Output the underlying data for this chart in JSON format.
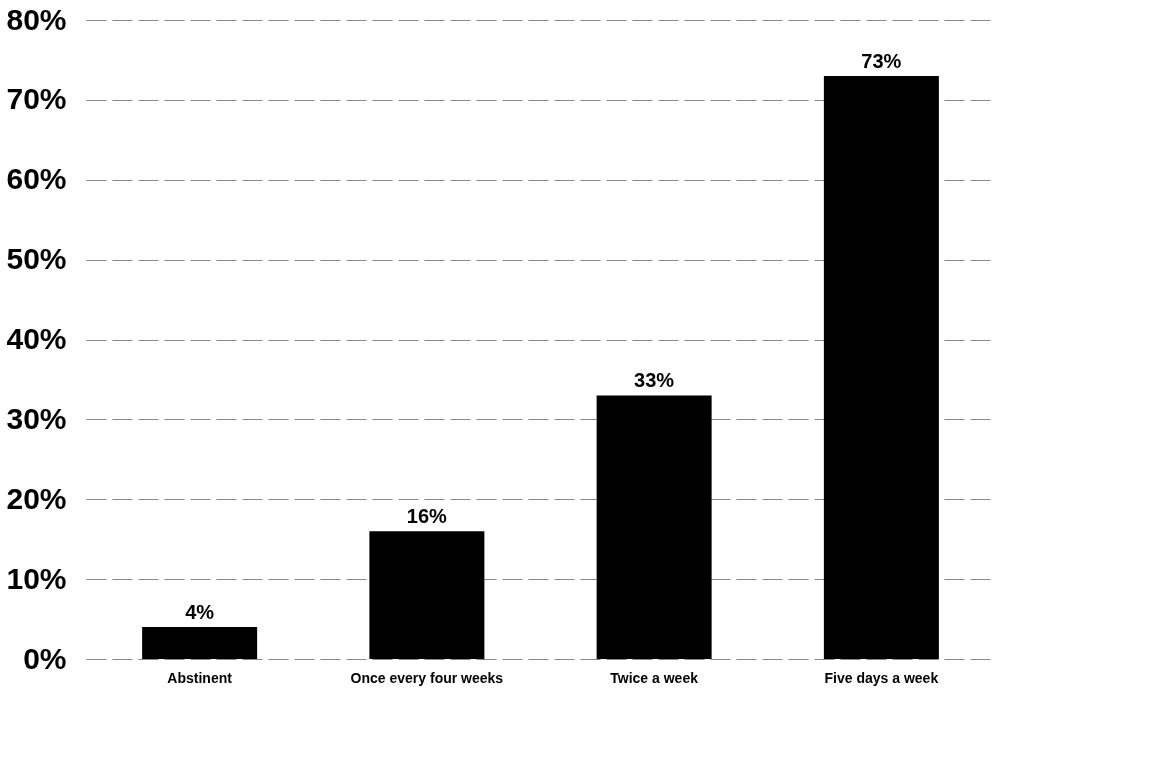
{
  "chart_data": {
    "type": "bar",
    "categories": [
      "Abstinent",
      "Once every four weeks",
      "Twice a week",
      "Five days a week"
    ],
    "values": [
      4,
      16,
      33,
      73
    ],
    "color": "#000000",
    "value_labels": [
      "4%",
      "16%",
      "33%",
      "73%"
    ],
    "ylim": [
      0,
      80
    ],
    "yticks": [
      {
        "value": 0,
        "label": "0%"
      },
      {
        "value": 10,
        "label": "10%"
      },
      {
        "value": 20,
        "label": "20%"
      },
      {
        "value": 30,
        "label": "30%"
      },
      {
        "value": 40,
        "label": "40%"
      },
      {
        "value": 50,
        "label": "50%"
      },
      {
        "value": 60,
        "label": "60%"
      },
      {
        "value": 70,
        "label": "70%"
      },
      {
        "value": 80,
        "label": "80%"
      }
    ],
    "grid": "y"
  }
}
